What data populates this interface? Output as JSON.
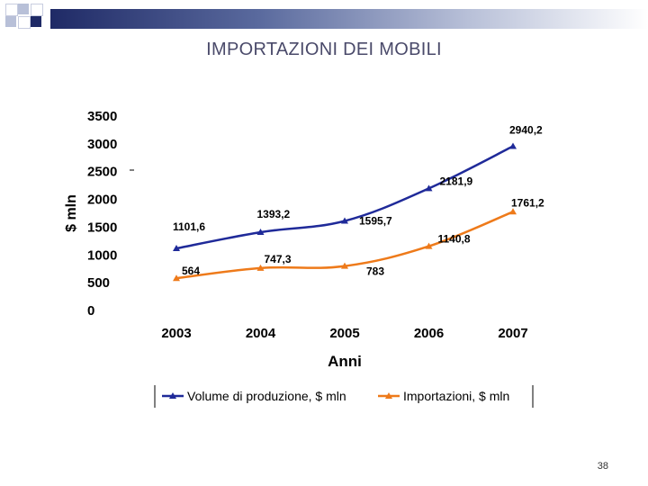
{
  "slide": {
    "title": "IMPORTAZIONI DEI MOBILI",
    "page_number": "38"
  },
  "colors": {
    "series1": "#1f2a99",
    "series2": "#ee7a1a",
    "title": "#4a4a6a",
    "band_dark": "#1f2a66"
  },
  "chart_data": {
    "type": "line",
    "title": "",
    "xlabel": "Anni",
    "ylabel": "$ mln",
    "categories": [
      "2003",
      "2004",
      "2005",
      "2006",
      "2007"
    ],
    "yticks": [
      "0",
      "500",
      "1000",
      "1500",
      "2000",
      "2500",
      "3000",
      "3500"
    ],
    "ylim": [
      0,
      3500
    ],
    "series": [
      {
        "name": "Volume di produzione, $ mln",
        "values": [
          1101.6,
          1393.2,
          1595.7,
          2181.9,
          2940.2
        ],
        "labels": [
          "1101,6",
          "1393,2",
          "1595,7",
          "2181,9",
          "2940,2"
        ]
      },
      {
        "name": "Importazioni, $ mln",
        "values": [
          564,
          747.3,
          783,
          1140.8,
          1761.2
        ],
        "labels": [
          "564",
          "747,3",
          "783",
          "1140,8",
          "1761,2"
        ]
      }
    ],
    "legend_position": "bottom"
  }
}
